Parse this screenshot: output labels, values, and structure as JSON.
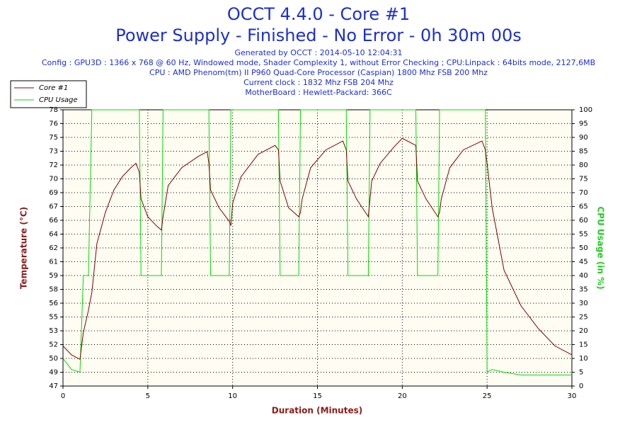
{
  "chart_data": {
    "type": "line",
    "title": "OCCT 4.4.0 - Core #1",
    "subtitle": "Power Supply - Finished - No Error - 0h 30m 00s",
    "info": [
      "Generated by OCCT : 2014-05-10 12:04:31",
      "Config : GPU3D : 1366 x 768 @ 60 Hz, Windowed mode, Shader Complexity 1, without Error Checking ; CPU:Linpack : 64bits mode, 2127,6MB",
      "CPU : AMD Phenom(tm) II P960 Quad-Core Processor (Caspian) 1800 Mhz FSB 200 Mhz",
      "Current clock : 1832 Mhz FSB 204 Mhz",
      "MotherBoard : Hewlett-Packard: 366C"
    ],
    "xlabel": "Duration (Minutes)",
    "ylabel": "Temperature (°C)",
    "y2label": "CPU Usage (in %)",
    "grid": true,
    "legend": "upper left",
    "xlim": [
      0,
      30
    ],
    "xticks": [
      0,
      5,
      10,
      15,
      20,
      25,
      30
    ],
    "ylim": [
      47,
      78
    ],
    "yticks": [
      47,
      {
        "value": 48.55,
        "label": "49"
      },
      {
        "value": 50.1,
        "label": "50"
      },
      {
        "value": 51.65,
        "label": "52"
      },
      {
        "value": 53.2,
        "label": "53"
      },
      {
        "value": 54.75,
        "label": "55"
      },
      {
        "value": 56.3,
        "label": "56"
      },
      {
        "value": 57.85,
        "label": "58"
      },
      {
        "value": 59.4,
        "label": "59"
      },
      {
        "value": 60.95,
        "label": "61"
      },
      {
        "value": 62.5,
        "label": "62"
      },
      {
        "value": 64.05,
        "label": "64"
      },
      {
        "value": 65.6,
        "label": "66"
      },
      {
        "value": 67.15,
        "label": "67"
      },
      {
        "value": 68.7,
        "label": "69"
      },
      {
        "value": 70.25,
        "label": "70"
      },
      {
        "value": 71.8,
        "label": "72"
      },
      {
        "value": 73.35,
        "label": "73"
      },
      {
        "value": 74.9,
        "label": "75"
      },
      {
        "value": 76.45,
        "label": "76"
      },
      78
    ],
    "y2lim": [
      0,
      100
    ],
    "y2ticks": [
      0,
      5,
      10,
      15,
      20,
      25,
      30,
      35,
      40,
      45,
      50,
      55,
      60,
      65,
      70,
      75,
      80,
      85,
      90,
      95,
      100
    ],
    "x": [
      0,
      0.5,
      1,
      1.2,
      1.5,
      1.7,
      2,
      2.5,
      3,
      3.5,
      4,
      4.3,
      4.5,
      4.6,
      5,
      5.5,
      5.8,
      5.9,
      6.2,
      7,
      8,
      8.5,
      8.6,
      8.7,
      9.2,
      9.8,
      9.9,
      10,
      10.5,
      11.5,
      12.5,
      12.7,
      12.8,
      13.3,
      13.9,
      14,
      14.1,
      14.6,
      15.5,
      16.5,
      16.7,
      16.8,
      17.3,
      18,
      18.1,
      18.2,
      18.7,
      19.5,
      20,
      20.8,
      20.9,
      21.4,
      22.1,
      22.2,
      22.3,
      22.8,
      23.6,
      24.7,
      24.9,
      25,
      25.3,
      26,
      27,
      28,
      29,
      30
    ],
    "series": [
      {
        "name": "Core #1",
        "color": "#800000",
        "values": [
          51.5,
          50.5,
          50,
          53,
          55.5,
          57.5,
          63,
          66.5,
          69,
          70.5,
          71.5,
          72,
          71,
          68,
          66,
          65,
          64.5,
          66,
          69.5,
          71.5,
          72.8,
          73.3,
          72,
          69,
          67,
          65.5,
          65,
          67.5,
          70.5,
          73,
          74,
          73.5,
          70,
          67,
          66,
          66.5,
          68,
          71.5,
          73.5,
          74.5,
          73.5,
          70,
          68,
          66,
          68,
          70,
          72,
          73.8,
          74.8,
          74,
          70,
          68,
          66,
          66.5,
          68,
          71.5,
          73.5,
          74.5,
          73.5,
          72,
          67,
          60,
          56,
          53.5,
          51.5,
          50.5
        ]
      },
      {
        "name": "CPU Usage",
        "color": "#00dd00",
        "axis": "y2",
        "values": [
          10,
          6,
          5,
          40,
          40,
          100,
          100,
          100,
          100,
          100,
          100,
          100,
          100,
          40,
          40,
          40,
          40,
          100,
          100,
          100,
          100,
          100,
          100,
          40,
          40,
          40,
          100,
          100,
          100,
          100,
          100,
          100,
          40,
          40,
          40,
          100,
          100,
          100,
          100,
          100,
          100,
          40,
          40,
          40,
          100,
          100,
          100,
          100,
          100,
          100,
          40,
          40,
          40,
          100,
          100,
          100,
          100,
          100,
          100,
          5,
          6,
          5,
          4,
          4,
          4,
          4
        ]
      }
    ]
  }
}
